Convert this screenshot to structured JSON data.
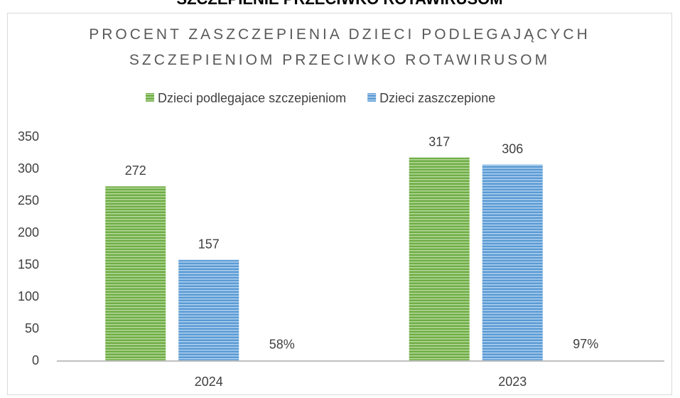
{
  "page_header": "SZCZEPIENIE PRZECIWKO ROTAWIRUSOM",
  "chart_data": {
    "type": "bar",
    "title_lines": [
      "PROCENT ZASZCZEPIENIA DZIECI PODLEGAJĄCYCH",
      "SZCZEPIENIOM PRZECIWKO ROTAWIRUSOM"
    ],
    "categories": [
      "2024",
      "2023"
    ],
    "series": [
      {
        "name": "Dzieci podlegajace szczepieniom",
        "color": "#70ad47",
        "values": [
          272,
          317
        ]
      },
      {
        "name": "Dzieci zaszczepione",
        "color": "#5b9bd5",
        "values": [
          157,
          306
        ]
      },
      {
        "color": "none",
        "values": [
          0.58,
          0.97
        ],
        "value_labels": [
          "58%",
          "97%"
        ]
      }
    ],
    "ylim": [
      0,
      350
    ],
    "yticks": [
      0,
      50,
      100,
      150,
      200,
      250,
      300,
      350
    ],
    "legend": "top",
    "grid": false
  }
}
